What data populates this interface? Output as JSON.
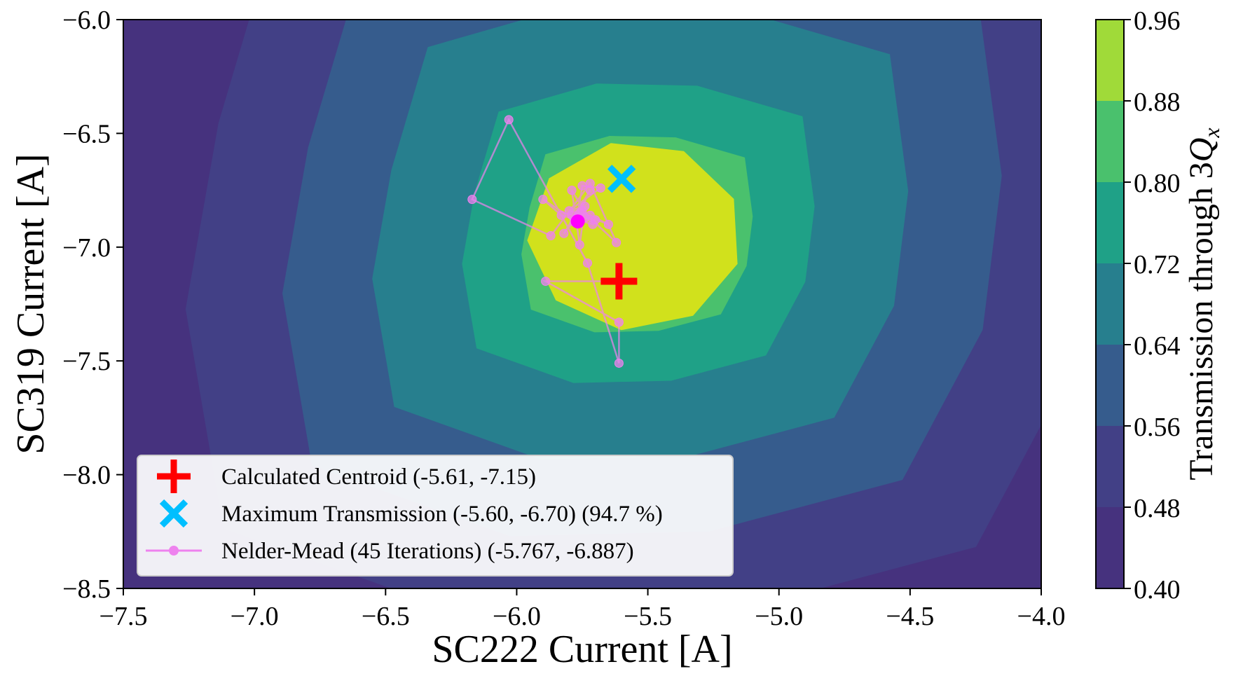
{
  "chart_data": {
    "type": "contour",
    "xlabel": "SC222 Current [A]",
    "ylabel": "SC319 Current [A]",
    "xlim": [
      -7.5,
      -4.0
    ],
    "ylim": [
      -8.5,
      -6.0
    ],
    "xticks": [
      "−7.5",
      "−7.0",
      "−6.5",
      "−6.0",
      "−5.5",
      "−5.0",
      "−4.5",
      "−4.0"
    ],
    "yticks": [
      "−6.0",
      "−6.5",
      "−7.0",
      "−7.5",
      "−8.0",
      "−8.5"
    ],
    "colorbar": {
      "label_prefix": "Transmission through 3",
      "label_symbol": "Q",
      "label_subscript": "x",
      "levels": [
        0.4,
        0.48,
        0.56,
        0.64,
        0.72,
        0.8,
        0.88,
        0.96
      ],
      "tick_labels": [
        "0.40",
        "0.48",
        "0.56",
        "0.64",
        "0.72",
        "0.80",
        "0.88",
        "0.96"
      ],
      "colors": [
        "#46327e",
        "#424086",
        "#365c8d",
        "#277f8e",
        "#1fa187",
        "#4ac16d",
        "#a0da39",
        "#d1e11c"
      ]
    },
    "contour_center": [
      -5.55,
      -6.95
    ],
    "grid": false,
    "legend": {
      "placement": "lower-left",
      "entries": [
        {
          "label": "Calculated Centroid (-5.61, -7.15)",
          "marker": "plus",
          "color": "#ff0000"
        },
        {
          "label": "Maximum Transmission (-5.60, -6.70) (94.7 %)",
          "marker": "x",
          "color": "#00bfff"
        },
        {
          "label": "Nelder-Mead (45 Iterations) (-5.767, -6.887)",
          "marker": "line-dot",
          "color": "#ee82ee"
        }
      ]
    },
    "centroid": {
      "x": -5.61,
      "y": -7.15,
      "color": "#ff0000"
    },
    "max_transmission": {
      "x": -5.6,
      "y": -6.7,
      "color": "#00bfff"
    },
    "nelder_mead": {
      "final": {
        "x": -5.767,
        "y": -6.887,
        "color": "#ff00ff"
      },
      "path_color": "#ee82ee",
      "x": [
        -5.61,
        -5.89,
        -5.61,
        -5.61,
        -5.73,
        -6.03,
        -6.17,
        -5.87,
        -5.72,
        -5.62,
        -5.75,
        -5.82,
        -5.72,
        -5.77,
        -5.75,
        -5.68,
        -5.8,
        -5.74,
        -5.76,
        -5.79,
        -5.71,
        -5.83,
        -5.9,
        -5.78,
        -5.72,
        -5.65,
        -5.76,
        -5.74,
        -5.79,
        -5.76,
        -5.7,
        -5.77,
        -5.78,
        -5.76,
        -5.77,
        -5.767
      ],
      "y": [
        -7.15,
        -7.15,
        -7.33,
        -7.51,
        -7.07,
        -6.44,
        -6.79,
        -6.95,
        -6.72,
        -6.98,
        -6.84,
        -6.94,
        -6.75,
        -6.87,
        -6.73,
        -6.74,
        -6.84,
        -6.82,
        -6.99,
        -6.75,
        -6.9,
        -6.86,
        -6.79,
        -6.88,
        -6.86,
        -6.9,
        -6.85,
        -6.87,
        -6.86,
        -6.89,
        -6.88,
        -6.87,
        -6.89,
        -6.88,
        -6.886,
        -6.887
      ]
    }
  }
}
